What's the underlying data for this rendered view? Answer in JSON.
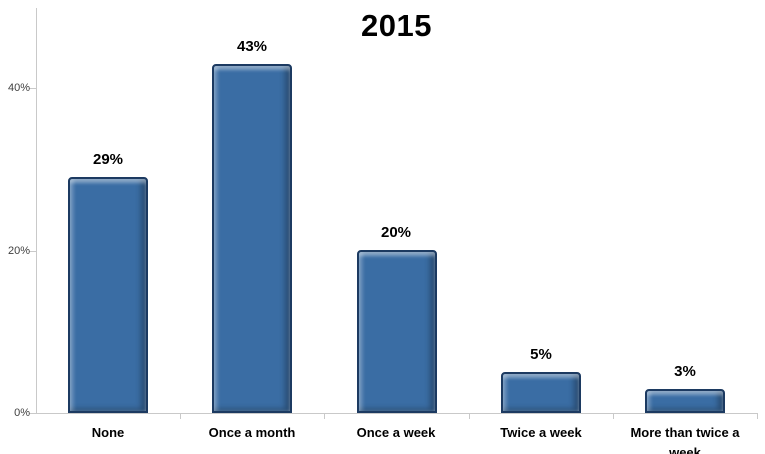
{
  "chart_data": {
    "type": "bar",
    "title": "2015",
    "categories": [
      "None",
      "Once a month",
      "Once a week",
      "Twice a week",
      "More than twice a week"
    ],
    "values": [
      29,
      43,
      20,
      5,
      3
    ],
    "value_labels": [
      "29%",
      "43%",
      "20%",
      "5%",
      "3%"
    ],
    "y_tick_values": [
      0,
      20,
      40
    ],
    "y_tick_labels": [
      "0%",
      "20%",
      "40%"
    ],
    "ylim": [
      0,
      50
    ],
    "xlabel": "",
    "ylabel": "",
    "grid": false,
    "legend": "none"
  },
  "colors": {
    "bar_fill": "#3A6DA4",
    "bar_border": "#1C3A61",
    "axis": "#C9C9C9",
    "tick_label_text": "#3F3F3F",
    "label_text": "#000000",
    "background": "#FFFFFF"
  }
}
